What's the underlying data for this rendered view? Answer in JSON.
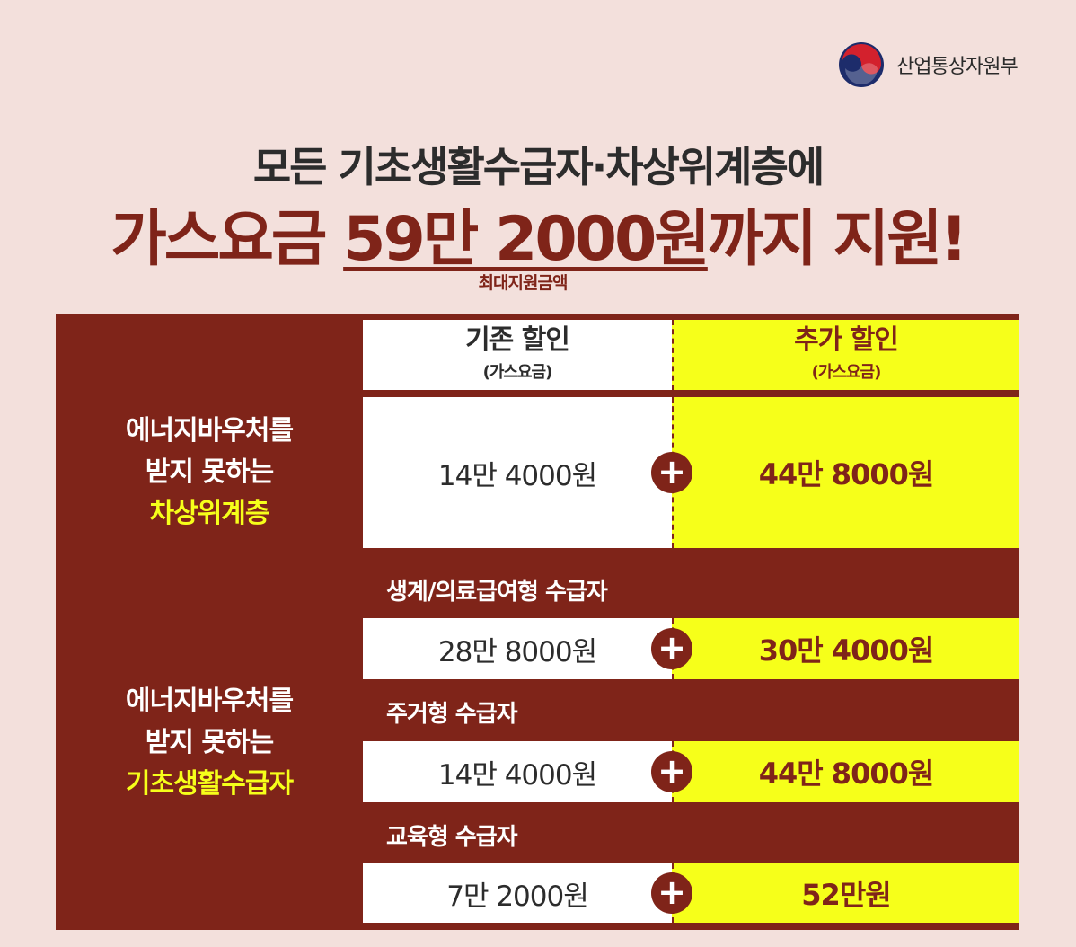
{
  "logo": {
    "text": "산업통상자원부",
    "icon": "taegeuk-emblem-icon"
  },
  "title": {
    "line1": "모든 기초생활수급자·차상위계층에",
    "line2_prefix": "가스요금 ",
    "line2_amount": "59만 2000원",
    "line2_suffix": "까지 지원!",
    "note": "최대지원금액"
  },
  "table": {
    "headers": {
      "base": {
        "main": "기존 할인",
        "sub": "(가스요금)"
      },
      "extra": {
        "main": "추가 할인",
        "sub": "(가스요금)"
      }
    },
    "group1": {
      "label_line1": "에너지바우처를",
      "label_line2": "받지 못하는",
      "label_highlight": "차상위계층",
      "base": "14만 4000원",
      "extra": "44만 8000원"
    },
    "group2": {
      "label_line1": "에너지바우처를",
      "label_line2": "받지 못하는",
      "label_highlight": "기초생활수급자",
      "rows": [
        {
          "name": "생계/의료급여형 수급자",
          "base": "28만 8000원",
          "extra": "30만 4000원"
        },
        {
          "name": "주거형 수급자",
          "base": "14만 4000원",
          "extra": "44만 8000원"
        },
        {
          "name": "교육형 수급자",
          "base": "7만 2000원",
          "extra": "52만원"
        }
      ]
    },
    "plus_symbol": "+"
  },
  "colors": {
    "background": "#f3e0dc",
    "accent": "#7f2419",
    "highlight": "#f6ff1a"
  }
}
